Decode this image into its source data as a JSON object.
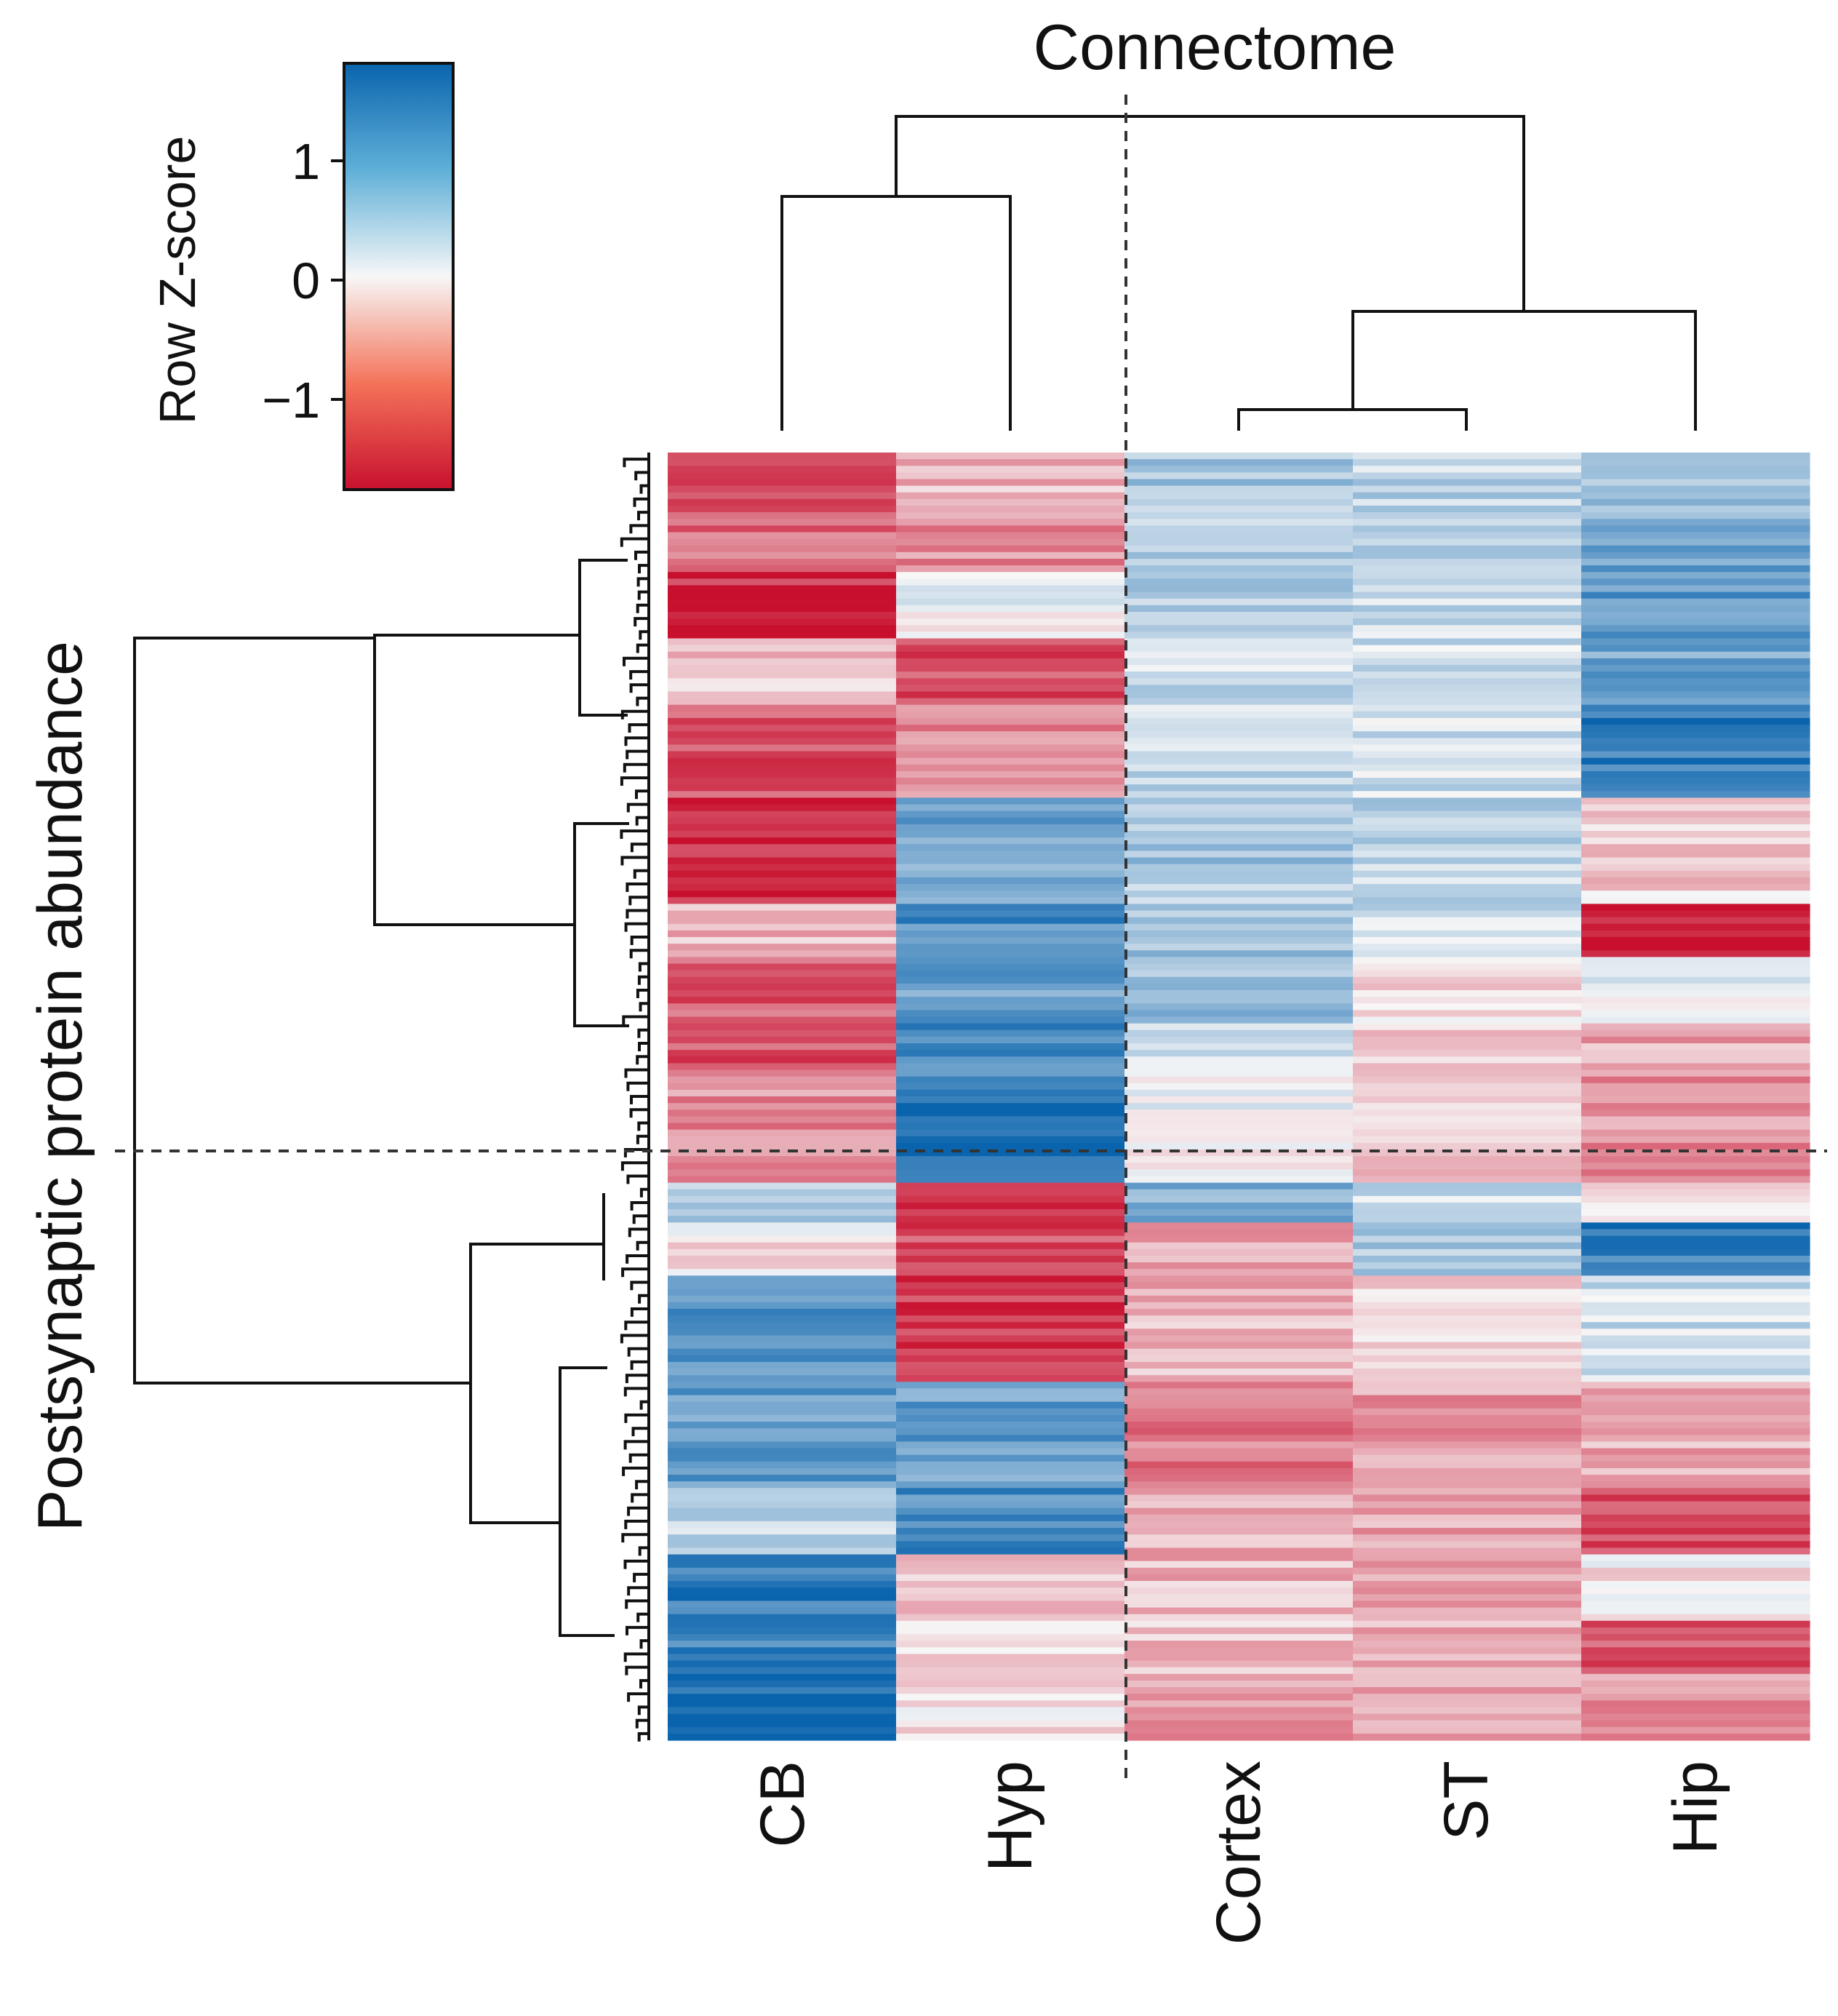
{
  "chart_data": {
    "type": "heatmap",
    "title": "Connectome",
    "ylabel": "Postsynaptic protein abundance",
    "columns": [
      "CB",
      "Hyp",
      "Cortex",
      "ST",
      "Hip"
    ],
    "column_dendrogram": {
      "merges": [
        {
          "left": "Cortex",
          "right": "ST",
          "height": 0.12
        },
        {
          "left": "Cortex+ST",
          "right": "Hip",
          "height": 0.38
        },
        {
          "left": "CB",
          "right": "Hyp",
          "height": 0.72
        },
        {
          "left": "CB+Hyp",
          "right": "Cortex+ST+Hip",
          "height": 1.0
        }
      ],
      "cut_between": [
        "Hyp",
        "Cortex"
      ]
    },
    "row_clusters": 2,
    "row_count": 200,
    "colorbar": {
      "label": "Row Z-score",
      "ticks": [
        1,
        0,
        -1
      ],
      "tick_labels": [
        "1",
        "0",
        "−1"
      ],
      "range": [
        -1.8,
        1.8
      ],
      "low_color": "#c8102e",
      "mid_color": "#f7f7f7",
      "high_color": "#0a64ad"
    },
    "row_blocks": [
      {
        "rows": 10,
        "values": [
          -1.3,
          -0.5,
          0.6,
          0.4,
          0.7
        ]
      },
      {
        "rows": 8,
        "values": [
          -1.1,
          -0.8,
          0.5,
          0.5,
          1.0
        ]
      },
      {
        "rows": 10,
        "values": [
          -1.6,
          0.1,
          0.5,
          0.4,
          1.2
        ]
      },
      {
        "rows": 10,
        "values": [
          -0.4,
          -1.3,
          0.3,
          0.3,
          1.0
        ]
      },
      {
        "rows": 14,
        "values": [
          -1.3,
          -0.8,
          0.4,
          0.3,
          1.5
        ]
      },
      {
        "rows": 16,
        "values": [
          -1.6,
          1.0,
          0.6,
          0.4,
          -0.3
        ]
      },
      {
        "rows": 8,
        "values": [
          -0.5,
          1.3,
          0.7,
          0.3,
          -1.6
        ]
      },
      {
        "rows": 10,
        "values": [
          -1.2,
          1.1,
          0.7,
          -0.2,
          0.2
        ]
      },
      {
        "rows": 8,
        "values": [
          -1.3,
          1.4,
          0.4,
          -0.3,
          -0.6
        ]
      },
      {
        "rows": 16,
        "values": [
          -0.8,
          1.7,
          0.0,
          -0.4,
          -0.8
        ]
      },
      {
        "rows": 6,
        "values": [
          0.6,
          -1.5,
          0.9,
          0.3,
          -0.3
        ]
      },
      {
        "rows": 8,
        "values": [
          -0.2,
          -1.3,
          -0.6,
          0.6,
          1.5
        ]
      },
      {
        "rows": 16,
        "values": [
          1.2,
          -1.5,
          -0.5,
          -0.3,
          0.3
        ]
      },
      {
        "rows": 16,
        "values": [
          1.1,
          1.1,
          -1.0,
          -0.7,
          -0.6
        ]
      },
      {
        "rows": 10,
        "values": [
          0.4,
          1.3,
          -0.5,
          -0.6,
          -1.4
        ]
      },
      {
        "rows": 10,
        "values": [
          1.5,
          -0.3,
          -0.5,
          -0.7,
          -0.1
        ]
      },
      {
        "rows": 8,
        "values": [
          1.4,
          -0.2,
          -0.4,
          -0.6,
          -1.2
        ]
      },
      {
        "rows": 10,
        "values": [
          1.7,
          -0.1,
          -0.7,
          -0.7,
          -0.8
        ]
      }
    ]
  }
}
